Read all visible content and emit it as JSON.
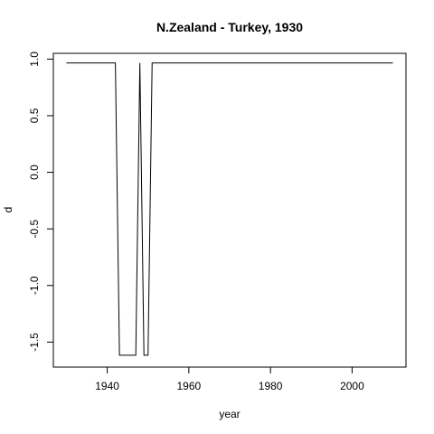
{
  "chart_data": {
    "type": "line",
    "title": "N.Zealand - Turkey, 1930",
    "xlabel": "year",
    "ylabel": "d",
    "xlim": [
      1926.8,
      2013.2
    ],
    "ylim": [
      -1.7208,
      1.0508
    ],
    "x_ticks": [
      1940,
      1960,
      1980,
      2000
    ],
    "x_tick_labels": [
      "1940",
      "1960",
      "1980",
      "2000"
    ],
    "y_ticks": [
      -1.5,
      -1.0,
      -0.5,
      0.0,
      0.5,
      1.0
    ],
    "y_tick_labels": [
      "-1.5",
      "-1.0",
      "-0.5",
      "0.0",
      "0.5",
      "1.0"
    ],
    "series": [
      {
        "name": "d",
        "x": [
          1930,
          1942,
          1943,
          1947,
          1948,
          1949,
          1950,
          1951,
          2010
        ],
        "y": [
          0.9655,
          0.9655,
          -1.6155,
          -1.6155,
          0.9655,
          -1.6155,
          -1.6155,
          0.9655,
          0.9655
        ]
      }
    ]
  }
}
